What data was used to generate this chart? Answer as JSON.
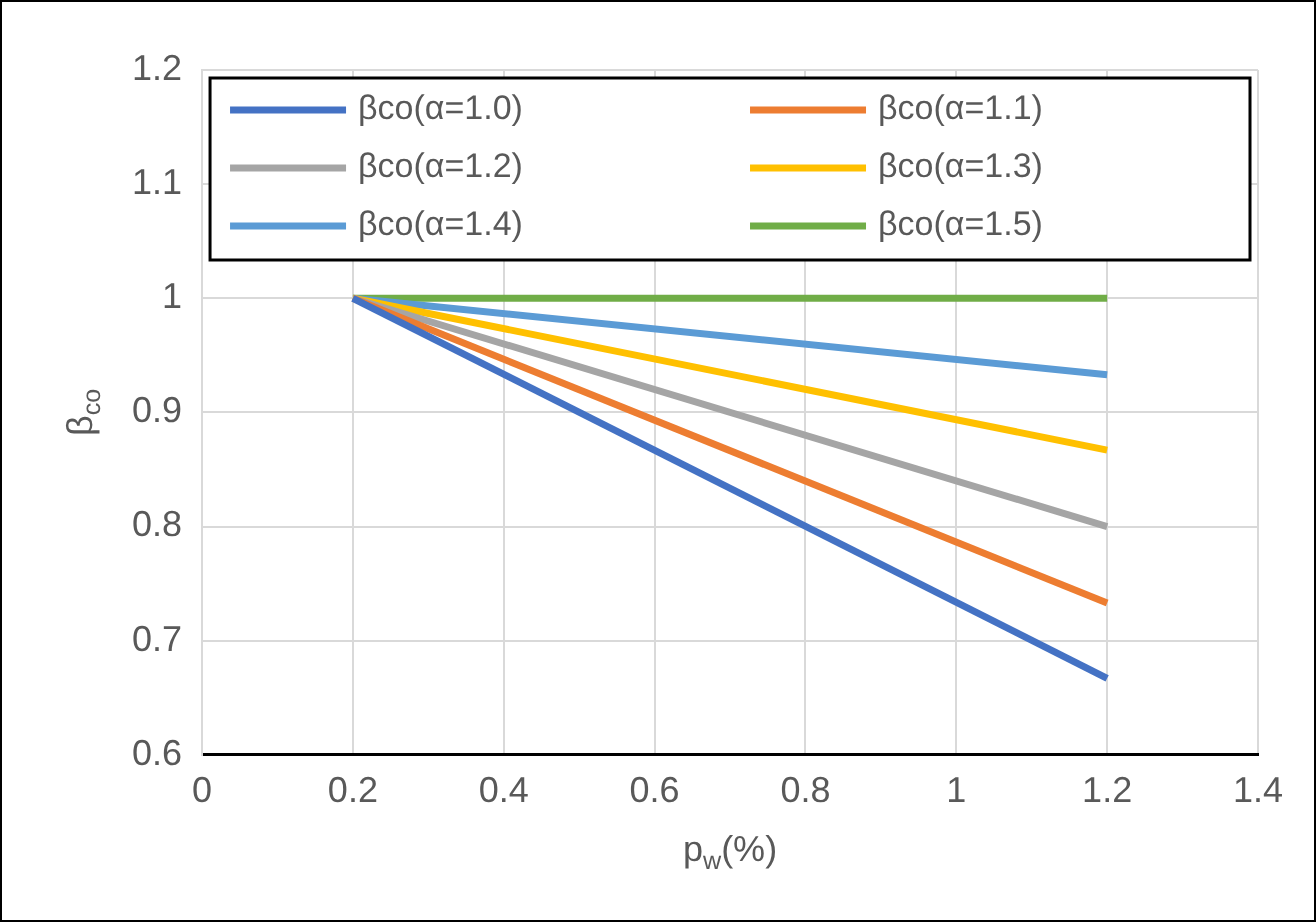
{
  "chart_data": {
    "type": "line",
    "xlabel": "p$_{w}$(%)",
    "ylabel": "β$_{co}$",
    "xlim": [
      0,
      1.4
    ],
    "xticks": [
      0,
      0.2,
      0.4,
      0.6,
      0.8,
      1,
      1.2,
      1.4
    ],
    "ylim": [
      0.6,
      1.2
    ],
    "yticks": [
      0.6,
      0.7,
      0.8,
      0.9,
      1,
      1.1,
      1.2
    ],
    "grid": true,
    "legend": "top",
    "marker": "none",
    "line_style": "solid",
    "x": [
      0.2,
      1.2
    ],
    "series": [
      {
        "name": "βco(α=1.0)",
        "color": "#4472c4",
        "values": [
          1,
          0.667
        ]
      },
      {
        "name": "βco(α=1.1)",
        "color": "#ed7d31",
        "values": [
          1,
          0.733
        ]
      },
      {
        "name": "βco(α=1.2)",
        "color": "#a5a5a5",
        "values": [
          1,
          0.8
        ]
      },
      {
        "name": "βco(α=1.3)",
        "color": "#ffc000",
        "values": [
          1,
          0.867
        ]
      },
      {
        "name": "βco(α=1.4)",
        "color": "#5b9bd5",
        "values": [
          1,
          0.933
        ]
      },
      {
        "name": "βco(α=1.5)",
        "color": "#70ad47",
        "values": [
          1,
          1
        ]
      }
    ]
  }
}
